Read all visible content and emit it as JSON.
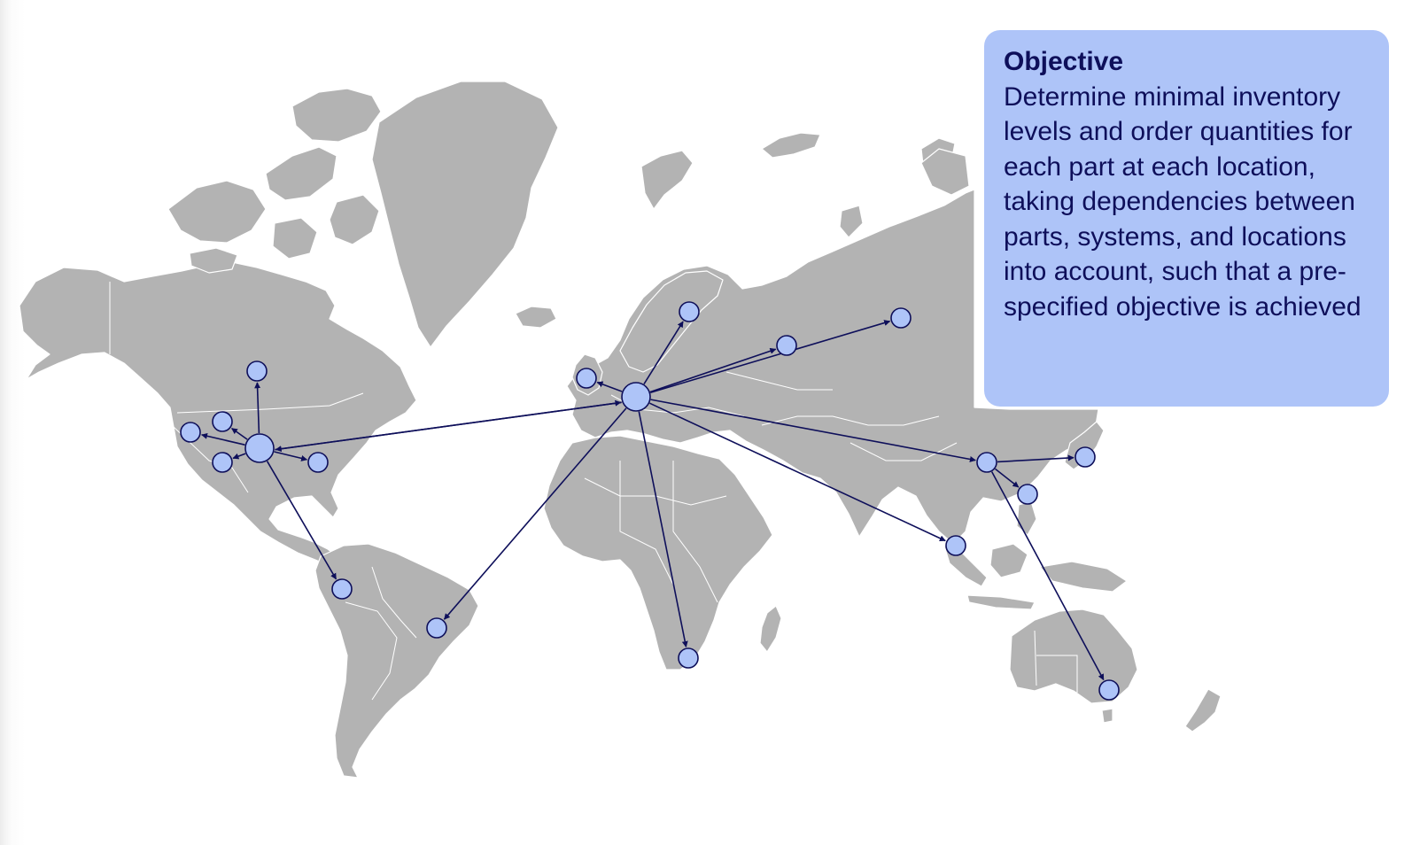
{
  "objective": {
    "title": "Objective",
    "text": "Determine minimal inventory levels and order quantities for each part at each location, taking dependencies between parts, systems, and locations into account, such that a pre-specified objective is achieved"
  },
  "colors": {
    "land": "#b3b3b3",
    "node_fill": "#aec4f8",
    "route": "#0e0f5a",
    "box_background": "#aec4f8",
    "box_text": "#0e0f5a"
  },
  "network": {
    "hubs": [
      "usa-central",
      "europe-central",
      "china"
    ],
    "locations": [
      "canada",
      "usa-west",
      "usa-northwest",
      "usa-southwest",
      "usa-southeast",
      "peru",
      "brazil",
      "uk",
      "scandinavia",
      "russia-west",
      "russia-east",
      "south-africa",
      "southeast-asia",
      "taiwan",
      "japan",
      "australia"
    ]
  }
}
